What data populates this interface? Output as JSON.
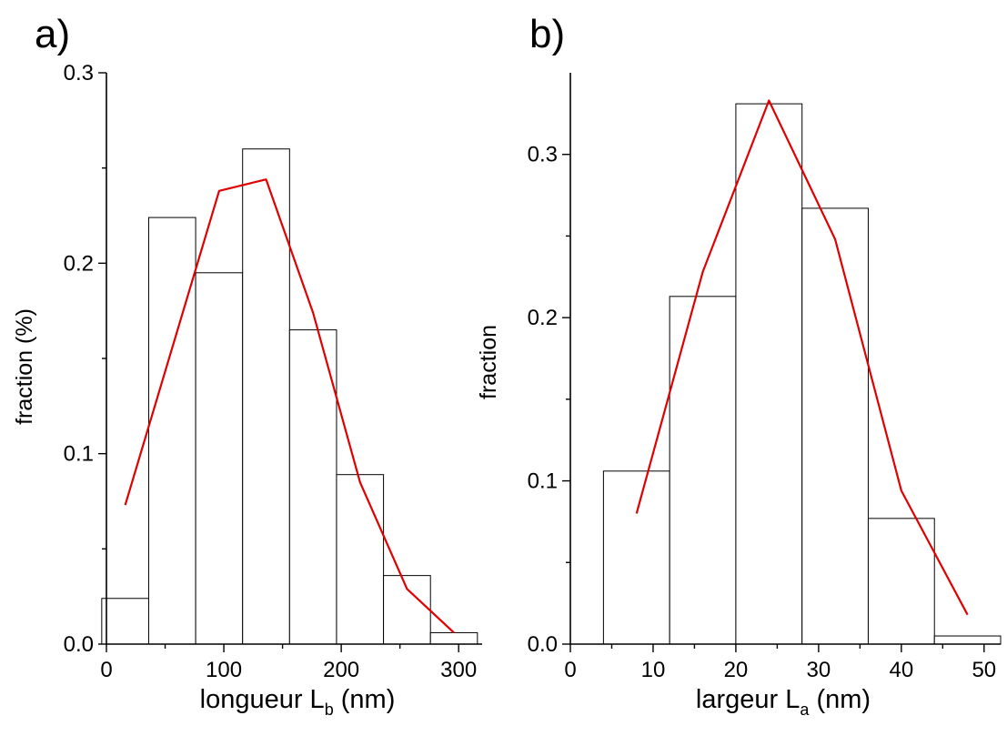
{
  "chart_data": [
    {
      "type": "bar",
      "panel_label": "a)",
      "xlabel": "longueur L",
      "xlabel_sub": "b",
      "xlabel_unit": " (nm)",
      "ylabel": "fraction (%)",
      "xlim": [
        0,
        320
      ],
      "ylim": [
        0,
        0.3
      ],
      "xticks": [
        0,
        100,
        200,
        300
      ],
      "xtick_labels": [
        "0",
        "100",
        "200",
        "300"
      ],
      "yticks": [
        0.0,
        0.1,
        0.2,
        0.3
      ],
      "ytick_labels": [
        "0.0",
        "0.1",
        "0.2",
        "0.3"
      ],
      "bins": [
        {
          "x0": -4,
          "x1": 36,
          "value": 0.024
        },
        {
          "x0": 36,
          "x1": 76,
          "value": 0.224
        },
        {
          "x0": 76,
          "x1": 116,
          "value": 0.195
        },
        {
          "x0": 116,
          "x1": 156,
          "value": 0.26
        },
        {
          "x0": 156,
          "x1": 196,
          "value": 0.165
        },
        {
          "x0": 196,
          "x1": 236,
          "value": 0.089
        },
        {
          "x0": 236,
          "x1": 276,
          "value": 0.036
        },
        {
          "x0": 276,
          "x1": 316,
          "value": 0.006
        }
      ],
      "fit_line": {
        "x": [
          16,
          96,
          136,
          176,
          216,
          256,
          296
        ],
        "y": [
          0.073,
          0.238,
          0.244,
          0.174,
          0.085,
          0.029,
          0.006
        ]
      },
      "grid": false
    },
    {
      "type": "bar",
      "panel_label": "b)",
      "xlabel": "largeur L",
      "xlabel_sub": "a",
      "xlabel_unit": " (nm)",
      "ylabel": "fraction",
      "xlim": [
        0,
        52
      ],
      "ylim": [
        0,
        0.35
      ],
      "xticks": [
        0,
        10,
        20,
        30,
        40,
        50
      ],
      "xtick_labels": [
        "0",
        "10",
        "20",
        "30",
        "40",
        "50"
      ],
      "yticks": [
        0.0,
        0.1,
        0.2,
        0.3
      ],
      "ytick_labels": [
        "0.0",
        "0.1",
        "0.2",
        "0.3"
      ],
      "bins": [
        {
          "x0": 4,
          "x1": 12,
          "value": 0.106
        },
        {
          "x0": 12,
          "x1": 20,
          "value": 0.213
        },
        {
          "x0": 20,
          "x1": 28,
          "value": 0.331
        },
        {
          "x0": 28,
          "x1": 36,
          "value": 0.267
        },
        {
          "x0": 36,
          "x1": 44,
          "value": 0.077
        },
        {
          "x0": 44,
          "x1": 52,
          "value": 0.005
        }
      ],
      "fit_line": {
        "x": [
          8,
          16,
          24,
          32,
          40,
          48
        ],
        "y": [
          0.08,
          0.228,
          0.333,
          0.248,
          0.094,
          0.018
        ]
      },
      "grid": false
    }
  ]
}
